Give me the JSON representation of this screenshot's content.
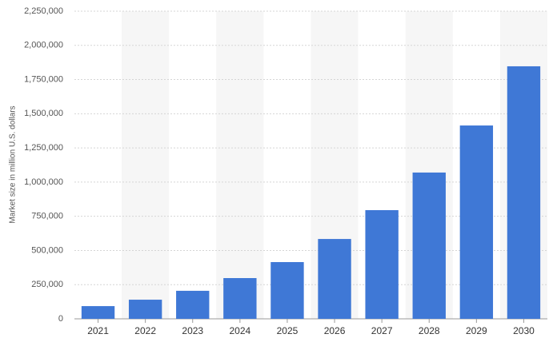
{
  "chart_data": {
    "type": "bar",
    "y_label": "Market size in million U.S. dollars",
    "categories": [
      "2021",
      "2022",
      "2023",
      "2024",
      "2025",
      "2026",
      "2027",
      "2028",
      "2029",
      "2030"
    ],
    "values": [
      93000,
      140000,
      205000,
      298000,
      415000,
      584000,
      795000,
      1070000,
      1414000,
      1847000
    ],
    "color": "#3f78d6",
    "ylim": [
      0,
      2250000
    ],
    "yticks": [
      0,
      {
        "value": 250000,
        "label": "250,000"
      },
      {
        "value": 500000,
        "label": "500,000"
      },
      {
        "value": 750000,
        "label": "750,000"
      },
      {
        "value": 1000000,
        "label": "1,000,000"
      },
      {
        "value": 1250000,
        "label": "1,250,000"
      },
      {
        "value": 1500000,
        "label": "1,500,000"
      },
      {
        "value": 1750000,
        "label": "1,750,000"
      },
      {
        "value": 2000000,
        "label": "2,000,000"
      },
      {
        "value": 2250000,
        "label": "2,250,000"
      }
    ],
    "grid": true
  }
}
